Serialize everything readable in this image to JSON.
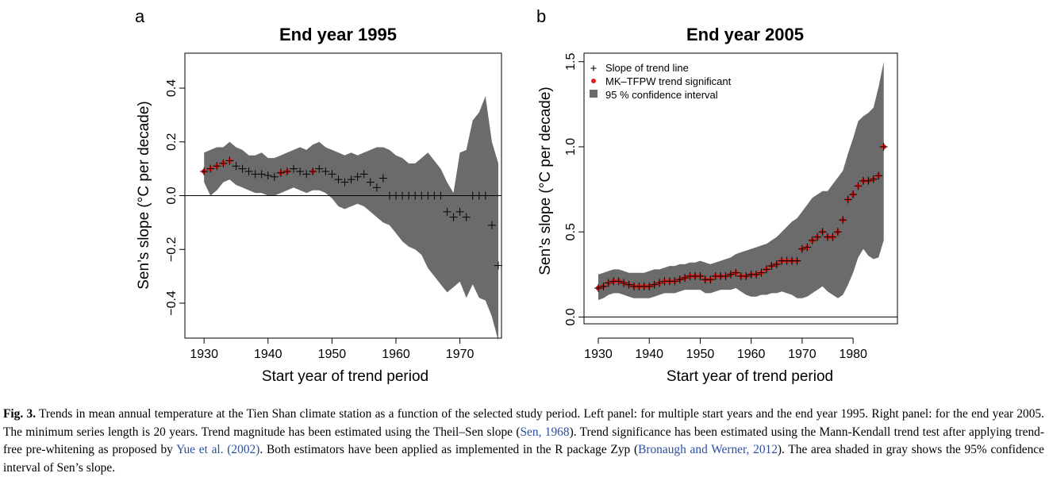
{
  "panels": [
    {
      "letter": "a",
      "title": "End year 1995",
      "xlabel": "Start year of trend period",
      "ylabel": "Sen’s slope (°C per decade)",
      "xticks": [
        "1930",
        "1940",
        "1950",
        "1960",
        "1970"
      ],
      "yticks": [
        "−0.4",
        "−0.2",
        "0.0",
        "0.2",
        "0.4"
      ]
    },
    {
      "letter": "b",
      "title": "End year 2005",
      "xlabel": "Start year of trend period",
      "ylabel": "Sen’s slope (°C per decade)",
      "xticks": [
        "1930",
        "1940",
        "1950",
        "1960",
        "1970",
        "1980"
      ],
      "yticks": [
        "0.0",
        "0.5",
        "1.0",
        "1.5"
      ],
      "legend": [
        "Slope of trend line",
        "MK–TFPW trend significant",
        "95 % confidence interval"
      ]
    }
  ],
  "caption": {
    "lead": "Fig. 3.",
    "t1": " Trends in mean annual temperature at the Tien Shan climate station as a function of the selected study period. Left panel: for multiple start years and the end year 1995. Right panel: for the end year 2005. The minimum series length is 20 years. Trend magnitude has been estimated using the Theil–Sen slope (",
    "r1": "Sen, 1968",
    "t2": "). Trend significance has been estimated using the Mann-Kendall trend test after applying trend-free pre-whitening as proposed by ",
    "r2": "Yue et al. (2002)",
    "t3": ". Both estimators have been applied as implemented in the R package Zyp (",
    "r3": "Bronaugh and Werner, 2012",
    "t4": "). The area shaded in gray shows the 95% confidence interval of Sen’s slope."
  },
  "colors": {
    "ci": "#6b6b6b",
    "significant": "#e0211b",
    "slope": "#000000"
  },
  "chart_data": [
    {
      "type": "scatter",
      "title": "End year 1995",
      "xlabel": "Start year of trend period",
      "ylabel": "Sen’s slope (°C per decade)",
      "xlim": [
        1927,
        1976.5
      ],
      "ylim": [
        -0.53,
        0.53
      ],
      "x": [
        1930,
        1931,
        1932,
        1933,
        1934,
        1935,
        1936,
        1937,
        1938,
        1939,
        1940,
        1941,
        1942,
        1943,
        1944,
        1945,
        1946,
        1947,
        1948,
        1949,
        1950,
        1951,
        1952,
        1953,
        1954,
        1955,
        1956,
        1957,
        1958,
        1959,
        1960,
        1961,
        1962,
        1963,
        1964,
        1965,
        1966,
        1967,
        1968,
        1969,
        1970,
        1971,
        1972,
        1973,
        1974,
        1975,
        1976
      ],
      "series": [
        {
          "name": "Slope of trend line",
          "values": [
            0.09,
            0.1,
            0.11,
            0.12,
            0.13,
            0.11,
            0.1,
            0.09,
            0.08,
            0.08,
            0.075,
            0.07,
            0.085,
            0.09,
            0.1,
            0.09,
            0.08,
            0.09,
            0.1,
            0.09,
            0.08,
            0.06,
            0.05,
            0.06,
            0.07,
            0.08,
            0.05,
            0.03,
            0.065,
            0.0,
            0.0,
            0.0,
            0.0,
            0.0,
            0.0,
            0.0,
            0.0,
            0.0,
            -0.06,
            -0.08,
            -0.06,
            -0.08,
            0.0,
            0.0,
            0.0,
            -0.11,
            -0.26
          ]
        },
        {
          "name": "MK–TFPW trend significant",
          "x": [
            1930,
            1931,
            1932,
            1933,
            1934,
            1942,
            1943,
            1947
          ],
          "values": [
            0.09,
            0.1,
            0.11,
            0.12,
            0.13,
            0.085,
            0.09,
            0.09
          ]
        },
        {
          "name": "95 % confidence interval",
          "upper": [
            0.16,
            0.17,
            0.18,
            0.18,
            0.2,
            0.18,
            0.17,
            0.15,
            0.15,
            0.16,
            0.14,
            0.14,
            0.15,
            0.16,
            0.17,
            0.18,
            0.17,
            0.19,
            0.2,
            0.18,
            0.17,
            0.16,
            0.15,
            0.16,
            0.15,
            0.16,
            0.17,
            0.18,
            0.18,
            0.17,
            0.15,
            0.14,
            0.12,
            0.12,
            0.14,
            0.16,
            0.13,
            0.1,
            0.05,
            0.01,
            0.16,
            0.17,
            0.28,
            0.31,
            0.37,
            0.2,
            0.12
          ],
          "lower": [
            0.05,
            0.0,
            0.02,
            0.05,
            0.06,
            0.04,
            0.03,
            0.02,
            0.01,
            0.01,
            0.0,
            0.0,
            0.01,
            0.02,
            0.03,
            0.02,
            0.01,
            0.02,
            0.02,
            0.01,
            -0.01,
            -0.04,
            -0.05,
            -0.04,
            -0.03,
            -0.04,
            -0.06,
            -0.08,
            -0.1,
            -0.11,
            -0.14,
            -0.17,
            -0.19,
            -0.2,
            -0.22,
            -0.27,
            -0.3,
            -0.33,
            -0.36,
            -0.34,
            -0.32,
            -0.38,
            -0.33,
            -0.38,
            -0.39,
            -0.45,
            -0.54
          ]
        }
      ]
    },
    {
      "type": "scatter",
      "title": "End year 2005",
      "xlabel": "Start year of trend period",
      "ylabel": "Sen’s slope (°C per decade)",
      "xlim": [
        1927.2,
        1988.7
      ],
      "ylim": [
        -0.04,
        1.55
      ],
      "legend_position": "top-left",
      "x": [
        1930,
        1931,
        1932,
        1933,
        1934,
        1935,
        1936,
        1937,
        1938,
        1939,
        1940,
        1941,
        1942,
        1943,
        1944,
        1945,
        1946,
        1947,
        1948,
        1949,
        1950,
        1951,
        1952,
        1953,
        1954,
        1955,
        1956,
        1957,
        1958,
        1959,
        1960,
        1961,
        1962,
        1963,
        1964,
        1965,
        1966,
        1967,
        1968,
        1969,
        1970,
        1971,
        1972,
        1973,
        1974,
        1975,
        1976,
        1977,
        1978,
        1979,
        1980,
        1981,
        1982,
        1983,
        1984,
        1985,
        1986
      ],
      "series": [
        {
          "name": "Slope of trend line",
          "values": [
            0.17,
            0.18,
            0.2,
            0.21,
            0.21,
            0.2,
            0.19,
            0.18,
            0.18,
            0.18,
            0.18,
            0.19,
            0.2,
            0.21,
            0.21,
            0.21,
            0.22,
            0.23,
            0.24,
            0.24,
            0.24,
            0.22,
            0.22,
            0.24,
            0.24,
            0.24,
            0.25,
            0.26,
            0.24,
            0.24,
            0.25,
            0.25,
            0.26,
            0.28,
            0.3,
            0.31,
            0.33,
            0.33,
            0.33,
            0.33,
            0.4,
            0.41,
            0.45,
            0.47,
            0.5,
            0.47,
            0.47,
            0.5,
            0.57,
            0.69,
            0.72,
            0.77,
            0.8,
            0.8,
            0.81,
            0.83,
            1.0
          ]
        },
        {
          "name": "MK–TFPW trend significant",
          "values": [
            0.17,
            0.18,
            0.2,
            0.21,
            0.21,
            0.2,
            0.19,
            0.18,
            0.18,
            0.18,
            0.18,
            0.19,
            0.2,
            0.21,
            0.21,
            0.21,
            0.22,
            0.23,
            0.24,
            0.24,
            0.24,
            0.22,
            0.22,
            0.24,
            0.24,
            0.24,
            0.25,
            0.26,
            0.24,
            0.24,
            0.25,
            0.25,
            0.26,
            0.28,
            0.3,
            0.31,
            0.33,
            0.33,
            0.33,
            0.33,
            0.4,
            0.41,
            0.45,
            0.47,
            0.5,
            0.47,
            0.47,
            0.5,
            0.57,
            0.69,
            0.72,
            0.77,
            0.8,
            0.8,
            0.81,
            0.83,
            1.0
          ]
        },
        {
          "name": "95 % confidence interval",
          "upper": [
            0.25,
            0.26,
            0.27,
            0.28,
            0.28,
            0.27,
            0.26,
            0.26,
            0.26,
            0.26,
            0.27,
            0.28,
            0.28,
            0.29,
            0.3,
            0.3,
            0.31,
            0.31,
            0.32,
            0.32,
            0.33,
            0.32,
            0.31,
            0.32,
            0.33,
            0.34,
            0.35,
            0.37,
            0.38,
            0.39,
            0.4,
            0.41,
            0.42,
            0.43,
            0.45,
            0.47,
            0.5,
            0.53,
            0.56,
            0.58,
            0.62,
            0.66,
            0.7,
            0.72,
            0.74,
            0.74,
            0.78,
            0.82,
            0.86,
            0.96,
            1.05,
            1.15,
            1.18,
            1.2,
            1.23,
            1.35,
            1.5
          ],
          "lower": [
            0.1,
            0.11,
            0.13,
            0.14,
            0.14,
            0.13,
            0.12,
            0.11,
            0.11,
            0.11,
            0.11,
            0.12,
            0.13,
            0.14,
            0.14,
            0.14,
            0.15,
            0.16,
            0.16,
            0.16,
            0.16,
            0.14,
            0.14,
            0.15,
            0.16,
            0.16,
            0.16,
            0.17,
            0.15,
            0.13,
            0.12,
            0.12,
            0.13,
            0.13,
            0.14,
            0.14,
            0.15,
            0.14,
            0.13,
            0.11,
            0.11,
            0.12,
            0.14,
            0.16,
            0.18,
            0.15,
            0.13,
            0.11,
            0.13,
            0.19,
            0.26,
            0.35,
            0.4,
            0.36,
            0.34,
            0.35,
            0.45
          ]
        }
      ]
    }
  ]
}
